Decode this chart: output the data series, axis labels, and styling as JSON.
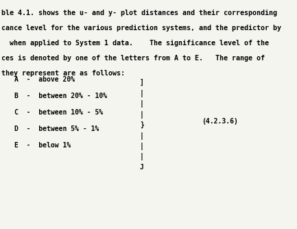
{
  "paragraph_lines": [
    "ble 4.1. shows the u- and y- plot distances and their corresponding",
    "cance level for the various prediction systems, and the predictor by",
    "  when applied to System 1 data.    The significance level of the",
    "ces is denoted by one of the letters from A to E.   The range of",
    "they represent are as follows:"
  ],
  "list_items": [
    "A  -  above 20%",
    "B  -  between 20% - 10%",
    "C  -  between 10% - 5%",
    "D  -  between 5% - 1%",
    "E  -  below 1%"
  ],
  "bracket_chars": [
    "]",
    "|",
    "|",
    "|",
    "}",
    "|",
    "|",
    "|",
    "J"
  ],
  "equation_label": "(4.2.3.6)",
  "font_color": "#000000",
  "bg_color": "#f5f5f0",
  "font_size": 7.0,
  "para_font_size": 7.2,
  "mono_font": "Courier New"
}
